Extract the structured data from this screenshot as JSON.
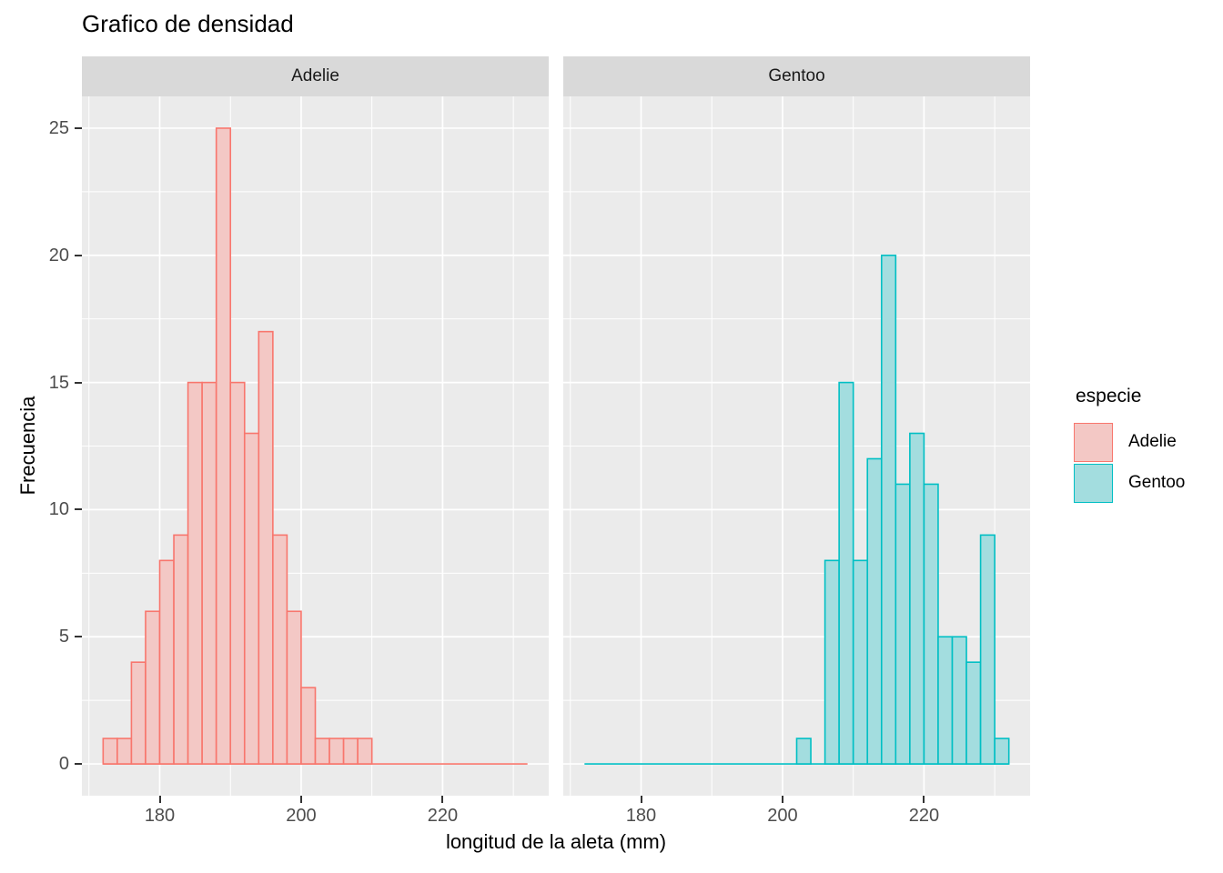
{
  "chart_data": {
    "type": "bar",
    "subtype": "faceted-histogram",
    "title": "Grafico de densidad",
    "xlabel": "longitud de la aleta (mm)",
    "ylabel": "Frecuencia",
    "x_ticks": [
      180,
      200,
      220
    ],
    "x_minor_gridlines": [
      170,
      190,
      210,
      230
    ],
    "y_ticks": [
      0,
      5,
      10,
      15,
      20,
      25
    ],
    "y_minor_gridlines": [
      2.5,
      7.5,
      12.5,
      17.5,
      22.5
    ],
    "xlim": [
      169,
      235
    ],
    "ylim": [
      -1.25,
      26.25
    ],
    "grid": true,
    "binwidth": 2,
    "bin_range": [
      172,
      232
    ],
    "facets": [
      {
        "label": "Adelie",
        "stroke": "#F8766D",
        "fill": "#F3C8C5",
        "bins": [
          [
            172,
            1
          ],
          [
            174,
            1
          ],
          [
            176,
            4
          ],
          [
            178,
            6
          ],
          [
            180,
            8
          ],
          [
            182,
            9
          ],
          [
            184,
            15
          ],
          [
            186,
            15
          ],
          [
            188,
            25
          ],
          [
            190,
            15
          ],
          [
            192,
            13
          ],
          [
            194,
            17
          ],
          [
            196,
            9
          ],
          [
            198,
            6
          ],
          [
            200,
            3
          ],
          [
            202,
            1
          ],
          [
            204,
            1
          ],
          [
            206,
            1
          ],
          [
            208,
            1
          ]
        ]
      },
      {
        "label": "Gentoo",
        "stroke": "#00BFC4",
        "fill": "#A3DDDF",
        "bins": [
          [
            202,
            1
          ],
          [
            206,
            8
          ],
          [
            208,
            15
          ],
          [
            210,
            8
          ],
          [
            212,
            12
          ],
          [
            214,
            20
          ],
          [
            216,
            11
          ],
          [
            218,
            13
          ],
          [
            220,
            11
          ],
          [
            222,
            5
          ],
          [
            224,
            5
          ],
          [
            226,
            4
          ],
          [
            228,
            9
          ],
          [
            230,
            1
          ]
        ]
      }
    ],
    "legend": {
      "title": "especie",
      "position": "right",
      "items": [
        {
          "label": "Adelie",
          "stroke": "#F8766D",
          "fill": "#F3C8C5"
        },
        {
          "label": "Gentoo",
          "stroke": "#00BFC4",
          "fill": "#A3DDDF"
        }
      ]
    },
    "colors": {
      "panel_bg": "#EBEBEB",
      "strip_bg": "#D9D9D9",
      "gridline": "#FFFFFF",
      "axis_text": "#4D4D4D",
      "tick_mark": "#333333",
      "text": "#000000",
      "background": "#FFFFFF"
    }
  }
}
